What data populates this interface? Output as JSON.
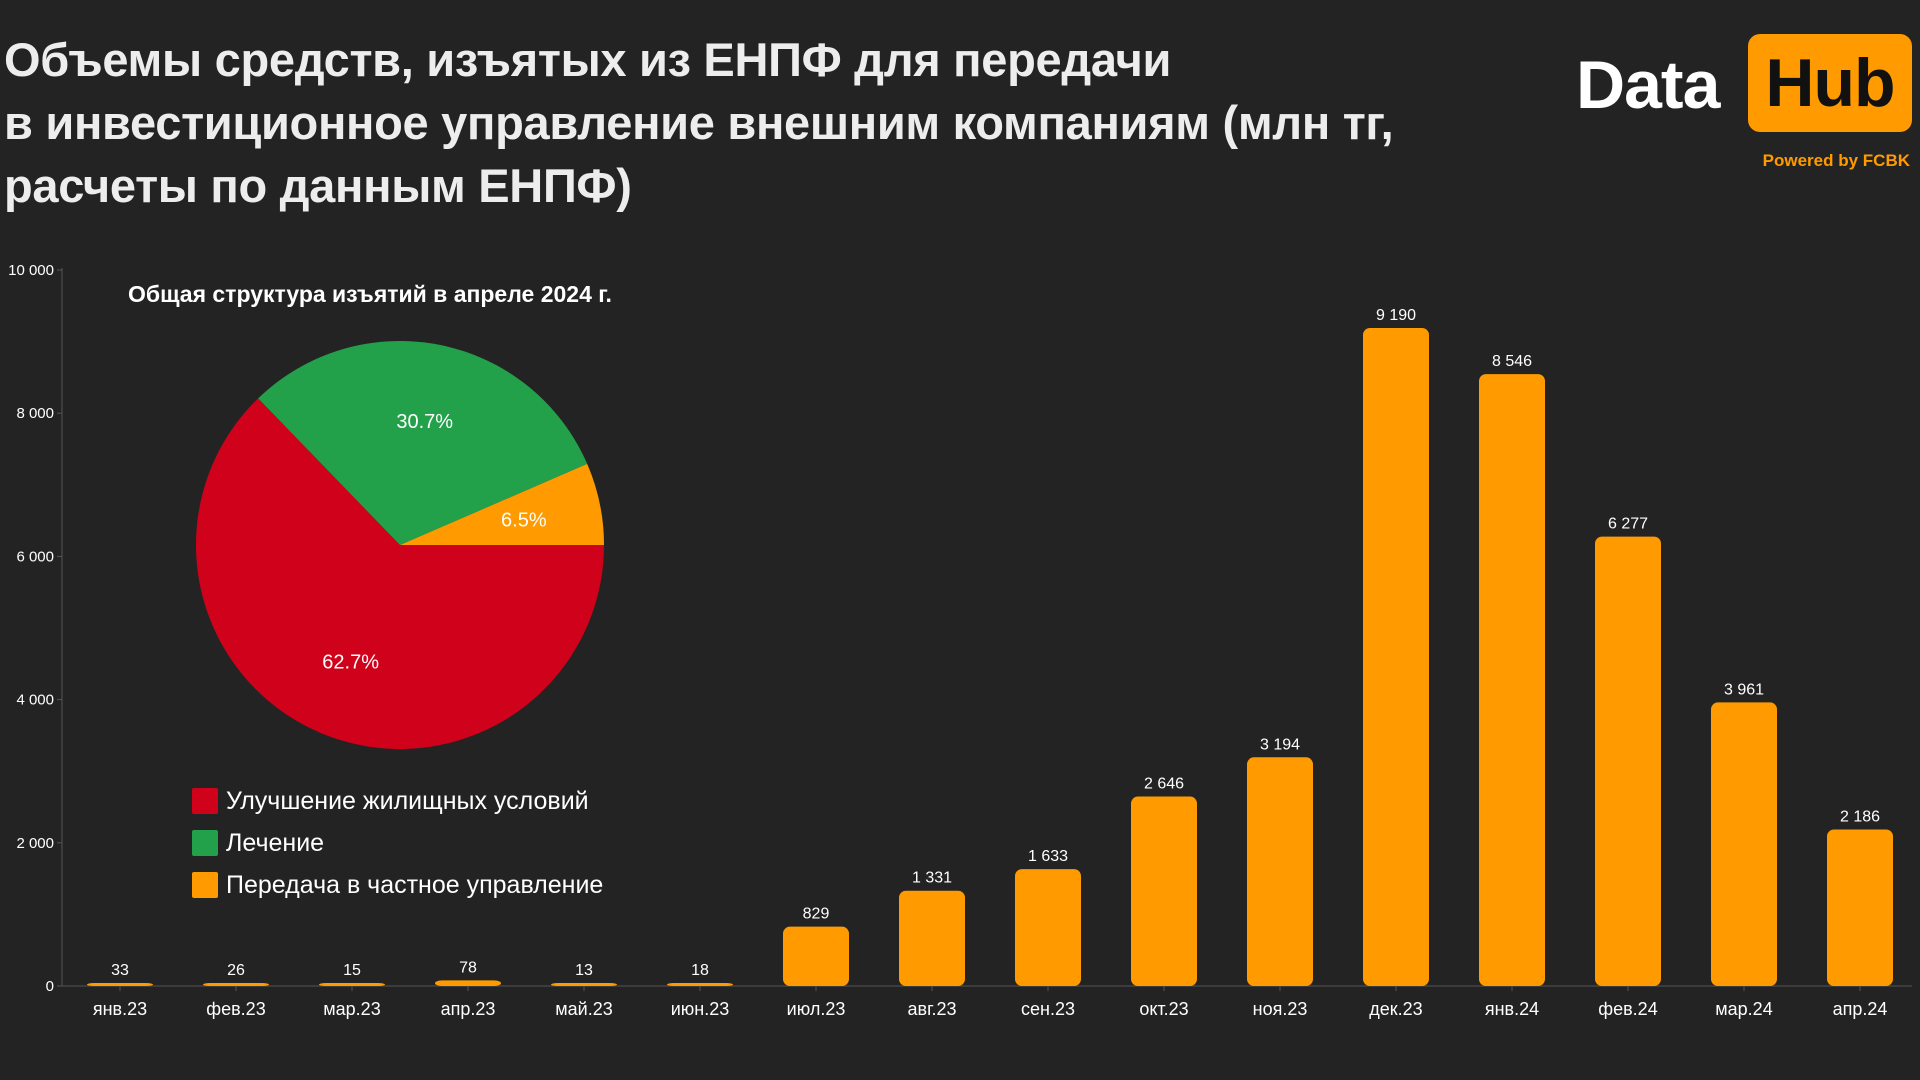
{
  "title_lines": [
    "Объемы средств, изъятых из ЕНПФ для передачи",
    "в инвестиционное управление внешним компаниям (млн тг,",
    "расчеты по данным ЕНПФ)"
  ],
  "logo": {
    "data": "Data",
    "hub": "Hub",
    "powered": "Powered by FCBK"
  },
  "colors": {
    "bar": "#ff9b00",
    "housing": "#d0021b",
    "treatment": "#22a14a",
    "private": "#ff9b00",
    "background": "#232323"
  },
  "chart_data": [
    {
      "type": "bar",
      "title": "Объемы средств, изъятых из ЕНПФ для передачи в инвестиционное управление внешним компаниям (млн тг, расчеты по данным ЕНПФ)",
      "categories": [
        "янв.23",
        "фев.23",
        "мар.23",
        "апр.23",
        "май.23",
        "июн.23",
        "июл.23",
        "авг.23",
        "сен.23",
        "окт.23",
        "ноя.23",
        "дек.23",
        "янв.24",
        "фев.24",
        "мар.24",
        "апр.24"
      ],
      "values": [
        33,
        26,
        15,
        78,
        13,
        18,
        829,
        1331,
        1633,
        2646,
        3194,
        9190,
        8546,
        6277,
        3961,
        2186
      ],
      "value_labels": [
        "33",
        "26",
        "15",
        "78",
        "13",
        "18",
        "829",
        "1 331",
        "1 633",
        "2 646",
        "3 194",
        "9 190",
        "8 546",
        "6 277",
        "3 961",
        "2 186"
      ],
      "ylim": [
        0,
        10000
      ],
      "yticks": [
        0,
        2000,
        4000,
        6000,
        8000,
        10000
      ],
      "ytick_labels": [
        "0",
        "2 000",
        "4 000",
        "6 000",
        "8 000",
        "10 000"
      ],
      "xlabel": "",
      "ylabel": "",
      "grid": false
    },
    {
      "type": "pie",
      "title": "Общая структура изъятий в апреле 2024 г.",
      "slices": [
        {
          "label": "Улучшение жилищных условий",
          "value": 62.7,
          "display": "62.7%",
          "color": "#d0021b"
        },
        {
          "label": "Лечение",
          "value": 30.7,
          "display": "30.7%",
          "color": "#22a14a"
        },
        {
          "label": "Передача в частное управление",
          "value": 6.5,
          "display": "6.5%",
          "color": "#ff9b00"
        }
      ],
      "legend_position": "bottom-left"
    }
  ]
}
